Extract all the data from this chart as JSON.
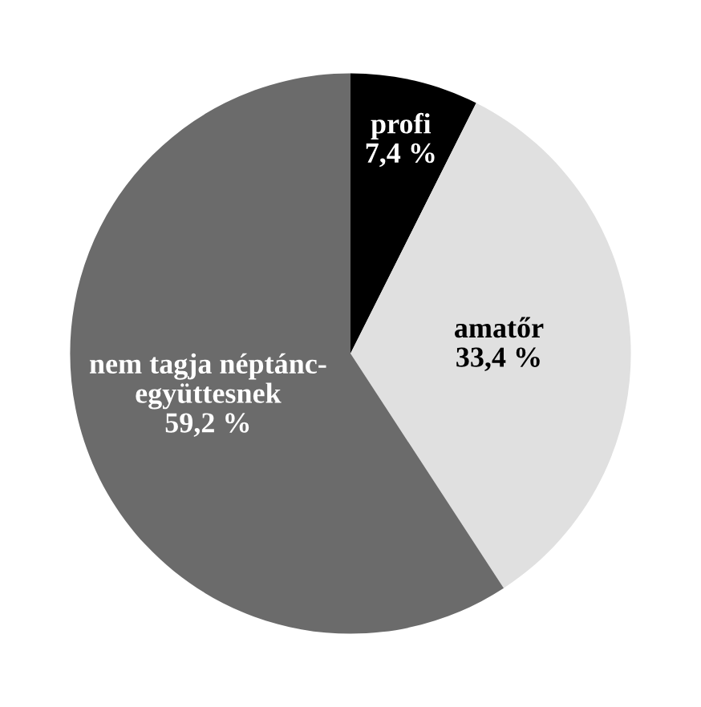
{
  "chart_data": {
    "type": "pie",
    "categories": [
      "profi",
      "amatőr",
      "nem tagja néptánc-\negyüttesnek"
    ],
    "values": [
      7.4,
      33.4,
      59.2
    ],
    "value_labels": [
      "7,4 %",
      "33,4 %",
      "59,2 %"
    ],
    "colors": [
      "#000000",
      "#e0e0e0",
      "#6b6b6b"
    ]
  }
}
